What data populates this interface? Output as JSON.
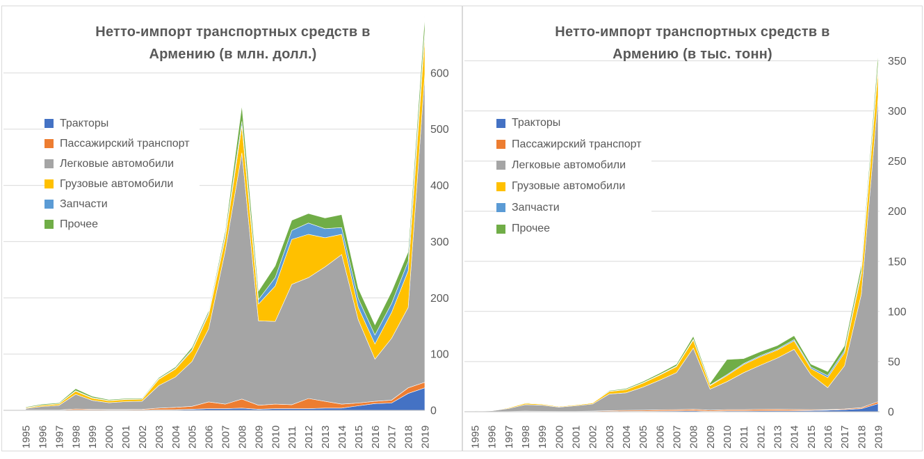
{
  "chart_data": [
    {
      "type": "area",
      "stacked": true,
      "title": "Нетто-импорт транспортных средств в Армению (в млн. долл.)",
      "title_lines": [
        "Нетто-импорт транспортных средств в",
        "Армению (в млн. долл.)"
      ],
      "xlabel": "",
      "ylabel": "",
      "ylim": [
        0,
        700
      ],
      "yticks": [
        0,
        100,
        200,
        300,
        400,
        500,
        600
      ],
      "grid": true,
      "legend_position": "left-overlay",
      "categories": [
        "1995",
        "1996",
        "1997",
        "1998",
        "1999",
        "2000",
        "2001",
        "2002",
        "2003",
        "2004",
        "2005",
        "2006",
        "2007",
        "2008",
        "2009",
        "2010",
        "2011",
        "2012",
        "2013",
        "2014",
        "2015",
        "2016",
        "2017",
        "2018",
        "2019"
      ],
      "series": [
        {
          "name": "Тракторы",
          "color": "#4472C4",
          "values": [
            0.4,
            0.4,
            0.4,
            0.5,
            0.5,
            0.5,
            0.5,
            0.5,
            1,
            1.2,
            2,
            3,
            3,
            4,
            2,
            3,
            3,
            3,
            4,
            4,
            8,
            12,
            13,
            30,
            40
          ]
        },
        {
          "name": "Пассажирский транспорт",
          "color": "#ED7D31",
          "values": [
            0.3,
            0.4,
            0.4,
            2,
            1.2,
            1,
            1,
            1.2,
            3,
            4,
            5,
            12,
            8,
            16,
            7,
            8,
            7,
            18,
            12,
            7,
            5,
            4,
            5,
            10,
            10
          ]
        },
        {
          "name": "Легковые автомобили",
          "color": "#A5A5A5",
          "values": [
            2.5,
            6,
            8,
            26,
            16,
            12,
            14,
            14.5,
            40,
            54,
            80,
            130,
            273,
            438,
            150,
            147,
            214,
            215,
            239,
            266,
            148,
            75,
            110,
            143,
            548
          ]
        },
        {
          "name": "Грузовые автомобили",
          "color": "#FFC000",
          "values": [
            1.3,
            2.1,
            2.6,
            5.5,
            4,
            3.5,
            3.5,
            3.3,
            11,
            14,
            19,
            25,
            22,
            48,
            30,
            63,
            80,
            77,
            52,
            36,
            22,
            27,
            46,
            65,
            68
          ]
        },
        {
          "name": "Запчасти",
          "color": "#5B9BD5",
          "values": [
            0.3,
            0.4,
            0.4,
            1,
            0.8,
            0.5,
            0.5,
            0.5,
            1,
            1.5,
            2,
            3,
            5,
            8,
            8,
            15,
            16,
            20,
            16,
            12,
            16,
            16,
            16,
            17,
            9
          ]
        },
        {
          "name": "Прочее",
          "color": "#70AD47",
          "values": [
            1.2,
            1.7,
            1.6,
            3.5,
            2.5,
            1.5,
            1.5,
            1.5,
            2,
            2.5,
            4,
            4,
            8,
            28,
            15,
            21,
            18,
            17,
            19,
            23,
            18,
            18,
            21,
            17,
            26
          ]
        }
      ]
    },
    {
      "type": "area",
      "stacked": true,
      "title": "Нетто-импорт транспортных средств в Армению (в тыс. тонн)",
      "title_lines": [
        "Нетто-импорт транспортных средств в",
        "Армению (в тыс. тонн)"
      ],
      "xlabel": "",
      "ylabel": "",
      "ylim": [
        0,
        360
      ],
      "yticks": [
        0,
        50,
        100,
        150,
        200,
        250,
        300,
        350
      ],
      "grid": true,
      "legend_position": "left-overlay",
      "categories": [
        "1995",
        "1996",
        "1997",
        "1998",
        "1999",
        "2000",
        "2001",
        "2002",
        "2003",
        "2004",
        "2005",
        "2006",
        "2007",
        "2008",
        "2009",
        "2010",
        "2011",
        "2012",
        "2013",
        "2014",
        "2015",
        "2016",
        "2017",
        "2018",
        "2019"
      ],
      "series": [
        {
          "name": "Тракторы",
          "color": "#4472C4",
          "values": [
            0.1,
            0.1,
            0.1,
            0.2,
            0.2,
            0.1,
            0.1,
            0.2,
            0.3,
            0.4,
            0.5,
            0.7,
            0.8,
            1,
            0.5,
            0.8,
            0.8,
            0.9,
            1,
            1,
            1.2,
            1.5,
            2,
            3,
            8
          ]
        },
        {
          "name": "Пассажирский транспорт",
          "color": "#ED7D31",
          "values": [
            0.1,
            0.1,
            0.2,
            0.4,
            0.3,
            0.3,
            0.3,
            0.4,
            0.8,
            1,
            1,
            1.2,
            1.2,
            1.5,
            1,
            1.2,
            1.2,
            1.5,
            1.5,
            1.2,
            0.8,
            0.5,
            0.8,
            1,
            2
          ]
        },
        {
          "name": "Легковые автомобили",
          "color": "#A5A5A5",
          "values": [
            0.3,
            0.7,
            2.8,
            6.5,
            6,
            4.2,
            5.5,
            7,
            16.5,
            17.5,
            23,
            29.5,
            37,
            61,
            21,
            28,
            37,
            44,
            51,
            60,
            35,
            22,
            43,
            113,
            304
          ]
        },
        {
          "name": "Грузовые автомобили",
          "color": "#FFC000",
          "values": [
            0.1,
            0.2,
            0.7,
            1.2,
            1,
            0.7,
            0.8,
            1,
            2.5,
            3,
            4,
            5,
            6,
            8,
            3.5,
            6,
            8,
            8.5,
            8,
            8.5,
            6,
            10,
            13,
            20,
            28
          ]
        },
        {
          "name": "Запчасти",
          "color": "#5B9BD5",
          "values": [
            0.02,
            0.03,
            0.05,
            0.1,
            0.1,
            0.05,
            0.05,
            0.1,
            0.2,
            0.3,
            0.4,
            0.5,
            0.6,
            0.8,
            0.5,
            1,
            1,
            1,
            1,
            1.2,
            1.5,
            2,
            2,
            3,
            5
          ]
        },
        {
          "name": "Прочее",
          "color": "#70AD47",
          "values": [
            0.1,
            0.1,
            0.3,
            0.5,
            0.4,
            0.3,
            0.3,
            0.4,
            0.8,
            1,
            1.3,
            1.5,
            1.8,
            3,
            2,
            15,
            5,
            4,
            3.5,
            4,
            3,
            4,
            5,
            6,
            11
          ]
        }
      ]
    }
  ],
  "colors": {
    "grid": "#d9d9d9",
    "axis": "#bfbfbf",
    "text": "#595959",
    "band_separator": "#ffffff"
  }
}
